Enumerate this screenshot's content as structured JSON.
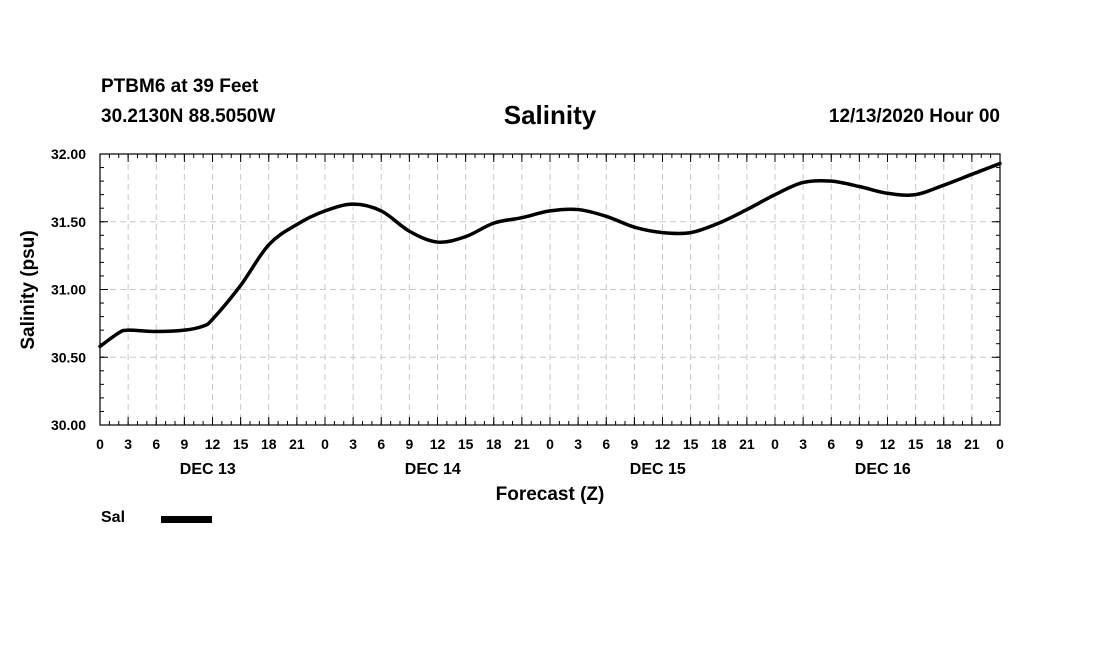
{
  "header": {
    "station": "PTBM6 at 39 Feet",
    "coords": "30.2130N 88.5050W",
    "title": "Salinity",
    "run_time": "12/13/2020 Hour 00"
  },
  "legend": {
    "label": "Sal"
  },
  "chart_data": {
    "type": "line",
    "title": "Salinity",
    "xlabel": "Forecast (Z)",
    "ylabel": "Salinity (psu)",
    "ylim": [
      30.0,
      32.0
    ],
    "xlim": [
      0,
      96
    ],
    "y_ticks": [
      "30.00",
      "30.50",
      "31.00",
      "31.50",
      "32.00"
    ],
    "x_tick_labels": [
      "0",
      "3",
      "6",
      "9",
      "12",
      "15",
      "18",
      "21",
      "0",
      "3",
      "6",
      "9",
      "12",
      "15",
      "18",
      "21",
      "0",
      "3",
      "6",
      "9",
      "12",
      "15",
      "18",
      "21",
      "0",
      "3",
      "6",
      "9",
      "12",
      "15",
      "18",
      "21",
      "0"
    ],
    "day_labels": [
      "DEC 13",
      "DEC 14",
      "DEC 15",
      "DEC 16"
    ],
    "grid": true,
    "series": [
      {
        "name": "Sal",
        "color": "#000000",
        "x": [
          0,
          2,
          3,
          6,
          9,
          11,
          12,
          15,
          18,
          21,
          24,
          27,
          30,
          33,
          36,
          39,
          42,
          45,
          48,
          51,
          54,
          57,
          60,
          63,
          66,
          69,
          72,
          75,
          78,
          81,
          84,
          87,
          90,
          93,
          96
        ],
        "values": [
          30.58,
          30.68,
          30.7,
          30.69,
          30.7,
          30.73,
          30.78,
          31.03,
          31.33,
          31.48,
          31.58,
          31.63,
          31.58,
          31.43,
          31.35,
          31.39,
          31.49,
          31.53,
          31.58,
          31.59,
          31.54,
          31.46,
          31.42,
          31.42,
          31.49,
          31.59,
          31.7,
          31.79,
          31.8,
          31.76,
          31.71,
          31.7,
          31.77,
          31.85,
          31.93
        ]
      }
    ]
  }
}
